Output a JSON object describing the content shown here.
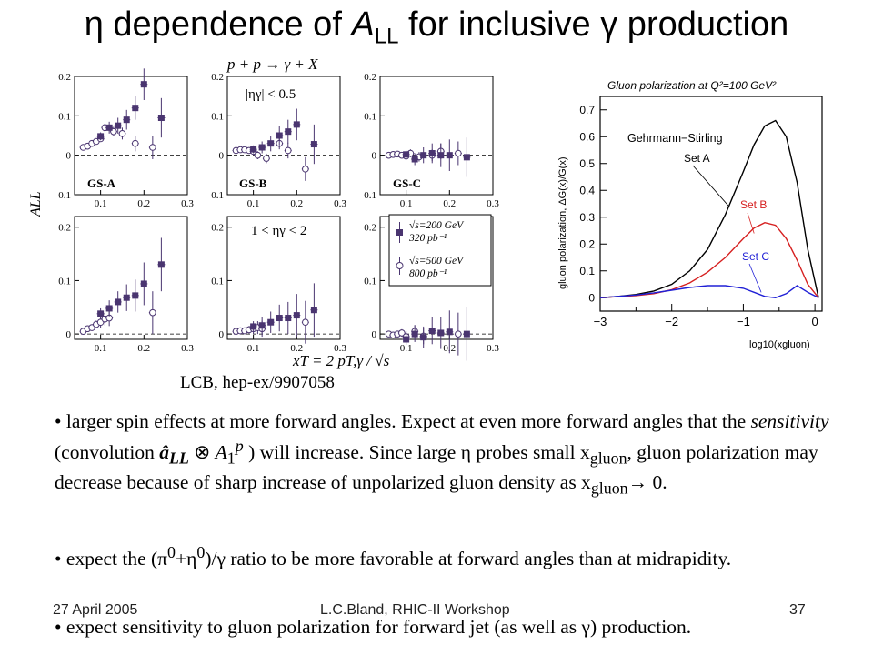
{
  "title": {
    "eta": "η",
    "pre": " dependence of ",
    "a": "A",
    "sub": "LL",
    "post": " for inclusive ",
    "gamma": "γ",
    "end": " production"
  },
  "panels": {
    "reaction": "p + p → γ + X",
    "eta_cut_top": "|ηγ| < 0.5",
    "eta_cut_bottom": "1 < ηγ < 2",
    "ylabel": "ALL",
    "xlabel": "xT = 2 pT,γ / √s",
    "model_labels": [
      "GS-A",
      "GS-B",
      "GS-C"
    ],
    "legend": [
      {
        "line1": "√s=200 GeV",
        "line2": "320 pb⁻¹",
        "marker": "filled-square"
      },
      {
        "line1": "√s=500 GeV",
        "line2": "800 pb⁻¹",
        "marker": "open-circle"
      }
    ],
    "x_ticks": [
      "0.1",
      "0.2",
      "0.3"
    ],
    "y_ticks": [
      "0.2",
      "0.1",
      "0",
      "-0.1"
    ]
  },
  "chart_data": [
    {
      "type": "scatter",
      "id": "top-GS-A",
      "xlim": [
        0.04,
        0.3
      ],
      "ylim": [
        -0.1,
        0.2
      ],
      "zero_line": "dashed",
      "series": [
        {
          "marker": "open-circle",
          "x": [
            0.06,
            0.07,
            0.08,
            0.09,
            0.1,
            0.11,
            0.13,
            0.15,
            0.18,
            0.22
          ],
          "y": [
            0.02,
            0.023,
            0.03,
            0.035,
            0.042,
            0.07,
            0.06,
            0.055,
            0.03,
            0.02
          ],
          "err": [
            0.005,
            0.005,
            0.006,
            0.006,
            0.008,
            0.01,
            0.012,
            0.015,
            0.02,
            0.03
          ]
        },
        {
          "marker": "filled-square",
          "x": [
            0.1,
            0.12,
            0.14,
            0.16,
            0.18,
            0.2,
            0.24
          ],
          "y": [
            0.048,
            0.07,
            0.075,
            0.09,
            0.12,
            0.18,
            0.095
          ],
          "err": [
            0.01,
            0.015,
            0.02,
            0.025,
            0.03,
            0.04,
            0.05
          ]
        }
      ]
    },
    {
      "type": "scatter",
      "id": "top-GS-B",
      "xlim": [
        0.04,
        0.3
      ],
      "ylim": [
        -0.1,
        0.2
      ],
      "zero_line": "dashed",
      "series": [
        {
          "marker": "open-circle",
          "x": [
            0.06,
            0.07,
            0.08,
            0.09,
            0.1,
            0.11,
            0.13,
            0.16,
            0.18,
            0.22
          ],
          "y": [
            0.012,
            0.014,
            0.014,
            0.012,
            0.01,
            0.0,
            -0.008,
            0.03,
            0.012,
            -0.035
          ],
          "err": [
            0.005,
            0.005,
            0.006,
            0.006,
            0.008,
            0.01,
            0.012,
            0.015,
            0.02,
            0.03
          ]
        },
        {
          "marker": "filled-square",
          "x": [
            0.1,
            0.12,
            0.14,
            0.16,
            0.18,
            0.2,
            0.24
          ],
          "y": [
            0.015,
            0.02,
            0.03,
            0.05,
            0.06,
            0.078,
            0.028
          ],
          "err": [
            0.01,
            0.015,
            0.02,
            0.025,
            0.03,
            0.04,
            0.05
          ]
        }
      ]
    },
    {
      "type": "scatter",
      "id": "top-GS-C",
      "xlim": [
        0.04,
        0.3
      ],
      "ylim": [
        -0.1,
        0.2
      ],
      "zero_line": "dashed",
      "series": [
        {
          "marker": "open-circle",
          "x": [
            0.06,
            0.07,
            0.08,
            0.09,
            0.1,
            0.11,
            0.13,
            0.16,
            0.18,
            0.22
          ],
          "y": [
            0.0,
            0.002,
            0.003,
            0.0,
            -0.002,
            0.005,
            -0.004,
            0.0,
            0.01,
            0.005
          ],
          "err": [
            0.005,
            0.005,
            0.006,
            0.006,
            0.008,
            0.01,
            0.012,
            0.015,
            0.02,
            0.03
          ]
        },
        {
          "marker": "filled-square",
          "x": [
            0.1,
            0.12,
            0.14,
            0.16,
            0.18,
            0.2,
            0.24
          ],
          "y": [
            0.002,
            -0.01,
            0.0,
            0.005,
            0.0,
            0.0,
            -0.005
          ],
          "err": [
            0.01,
            0.015,
            0.02,
            0.025,
            0.03,
            0.04,
            0.05
          ]
        }
      ]
    },
    {
      "type": "scatter",
      "id": "bottom-GS-A",
      "xlim": [
        0.04,
        0.3
      ],
      "ylim": [
        -0.01,
        0.22
      ],
      "zero_line": "dashed",
      "series": [
        {
          "marker": "open-circle",
          "x": [
            0.06,
            0.07,
            0.08,
            0.09,
            0.1,
            0.11,
            0.12,
            0.22
          ],
          "y": [
            0.005,
            0.01,
            0.012,
            0.018,
            0.022,
            0.028,
            0.03,
            0.04
          ],
          "err": [
            0.005,
            0.005,
            0.006,
            0.007,
            0.01,
            0.012,
            0.015,
            0.04
          ]
        },
        {
          "marker": "filled-square",
          "x": [
            0.1,
            0.12,
            0.14,
            0.16,
            0.18,
            0.2,
            0.24
          ],
          "y": [
            0.038,
            0.048,
            0.06,
            0.068,
            0.072,
            0.094,
            0.13
          ],
          "err": [
            0.01,
            0.015,
            0.02,
            0.025,
            0.03,
            0.04,
            0.05
          ]
        }
      ]
    },
    {
      "type": "scatter",
      "id": "bottom-GS-B",
      "xlim": [
        0.04,
        0.3
      ],
      "ylim": [
        -0.01,
        0.22
      ],
      "zero_line": "dashed",
      "series": [
        {
          "marker": "open-circle",
          "x": [
            0.06,
            0.07,
            0.08,
            0.09,
            0.1,
            0.11,
            0.12,
            0.22
          ],
          "y": [
            0.005,
            0.006,
            0.006,
            0.008,
            0.01,
            0.012,
            0.01,
            0.022
          ],
          "err": [
            0.005,
            0.005,
            0.006,
            0.007,
            0.01,
            0.012,
            0.015,
            0.04
          ]
        },
        {
          "marker": "filled-square",
          "x": [
            0.1,
            0.12,
            0.14,
            0.16,
            0.18,
            0.2,
            0.24
          ],
          "y": [
            0.014,
            0.016,
            0.022,
            0.03,
            0.03,
            0.035,
            0.045
          ],
          "err": [
            0.01,
            0.015,
            0.02,
            0.025,
            0.03,
            0.04,
            0.05
          ]
        }
      ]
    },
    {
      "type": "scatter",
      "id": "bottom-GS-C",
      "xlim": [
        0.04,
        0.3
      ],
      "ylim": [
        -0.01,
        0.22
      ],
      "zero_line": "dashed",
      "series": [
        {
          "marker": "open-circle",
          "x": [
            0.06,
            0.07,
            0.08,
            0.09,
            0.1,
            0.12,
            0.14,
            0.22
          ],
          "y": [
            0.0,
            -0.002,
            0.0,
            0.002,
            -0.005,
            0.005,
            -0.004,
            0.0
          ],
          "err": [
            0.005,
            0.005,
            0.006,
            0.007,
            0.01,
            0.012,
            0.015,
            0.04
          ]
        },
        {
          "marker": "filled-square",
          "x": [
            0.1,
            0.12,
            0.14,
            0.16,
            0.18,
            0.2,
            0.24
          ],
          "y": [
            -0.01,
            0.0,
            -0.006,
            0.006,
            0.002,
            0.004,
            0.0
          ],
          "err": [
            0.01,
            0.015,
            0.02,
            0.025,
            0.03,
            0.04,
            0.05
          ]
        }
      ]
    },
    {
      "type": "line",
      "id": "gluon-polarization",
      "title": "Gluon polarization at Q²=100 GeV²",
      "ylabel": "gluon polarization, ΔG(x)/G(x)",
      "xlabel": "log10(xgluon)",
      "xlim": [
        -3,
        0.1
      ],
      "ylim": [
        -0.05,
        0.75
      ],
      "x_ticks": [
        "−3",
        "−2",
        "−1",
        "0"
      ],
      "y_ticks": [
        "0",
        "0.1",
        "0.2",
        "0.3",
        "0.4",
        "0.5",
        "0.6",
        "0.7"
      ],
      "group_label": "Gehrmann−Stirling",
      "series": [
        {
          "name": "Set A",
          "color": "#000000",
          "x": [
            -3,
            -2.75,
            -2.5,
            -2.25,
            -2.0,
            -1.75,
            -1.5,
            -1.25,
            -1.0,
            -0.85,
            -0.7,
            -0.55,
            -0.4,
            -0.25,
            -0.1,
            0.05
          ],
          "y": [
            0.0,
            0.005,
            0.012,
            0.025,
            0.05,
            0.1,
            0.18,
            0.31,
            0.47,
            0.57,
            0.64,
            0.66,
            0.6,
            0.43,
            0.18,
            0.0
          ]
        },
        {
          "name": "Set B",
          "color": "#d62020",
          "x": [
            -3,
            -2.75,
            -2.5,
            -2.25,
            -2.0,
            -1.75,
            -1.5,
            -1.25,
            -1.0,
            -0.85,
            -0.7,
            -0.55,
            -0.4,
            -0.25,
            -0.1,
            0.05
          ],
          "y": [
            0.0,
            0.004,
            0.008,
            0.015,
            0.03,
            0.055,
            0.095,
            0.15,
            0.22,
            0.26,
            0.28,
            0.27,
            0.22,
            0.14,
            0.05,
            0.0
          ]
        },
        {
          "name": "Set C",
          "color": "#2020d6",
          "x": [
            -3,
            -2.75,
            -2.5,
            -2.25,
            -2.0,
            -1.75,
            -1.5,
            -1.25,
            -1.0,
            -0.85,
            -0.7,
            -0.55,
            -0.4,
            -0.25,
            -0.1,
            0.05
          ],
          "y": [
            0.0,
            0.005,
            0.01,
            0.018,
            0.028,
            0.038,
            0.045,
            0.045,
            0.035,
            0.02,
            0.005,
            0.0,
            0.015,
            0.045,
            0.02,
            0.0
          ]
        }
      ]
    }
  ],
  "ref": "LCB, hep-ex/9907058",
  "bullets": [
    {
      "t1": " larger spin effects at more forward angles.  Expect at even more forward angles that the ",
      "sens": "sensitivity",
      "t2": " (convolution ",
      "aLL": "â",
      "aLLsub": "LL",
      "otimes": " ⊗ ",
      "A1": "A",
      "A1sub": "1",
      "A1sup": "p",
      "t3": " ) will increase.  Since large η probes small x",
      "xsub1": "gluon",
      "t4": ", gluon polarization may decrease because of sharp increase of unpolarized gluon density as x",
      "xsub2": "gluon",
      "t5": "→ 0."
    },
    {
      "t1": " expect the (π",
      "sup1": "0",
      "t2": "+η",
      "sup2": "0",
      "t3": ")/γ ratio to be more favorable at forward angles than at midrapidity."
    },
    {
      "t1": " expect sensitivity to gluon polarization for forward jet (as well as γ) production."
    }
  ],
  "footer": {
    "date": "27 April 2005",
    "center": "L.C.Bland, RHIC-II Workshop",
    "page": "37"
  }
}
